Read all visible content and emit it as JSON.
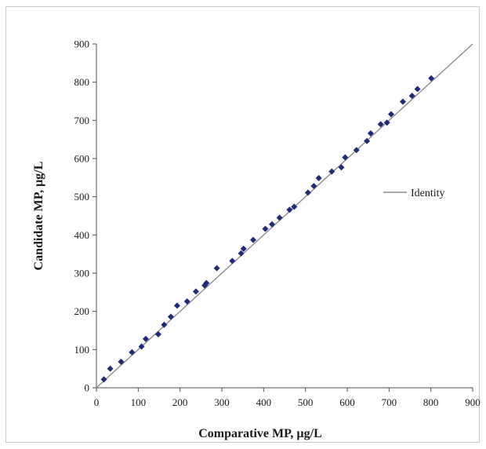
{
  "chart_data": {
    "type": "scatter",
    "xlabel": "Comparative MP, µg/L",
    "ylabel": "Candidate MP, µg/L",
    "xlim": [
      0,
      900
    ],
    "ylim": [
      0,
      900
    ],
    "xticks": [
      "0",
      "100",
      "200",
      "300",
      "400",
      "500",
      "600",
      "700",
      "800",
      "900"
    ],
    "yticks": [
      "0",
      "100",
      "200",
      "300",
      "400",
      "500",
      "600",
      "700",
      "800",
      "900"
    ],
    "grid": false,
    "legend_position": "right",
    "series": [
      {
        "kind": "scatter",
        "marker": "diamond",
        "color": "#1f2a7a",
        "points": [
          [
            18,
            22
          ],
          [
            33,
            50
          ],
          [
            59,
            68
          ],
          [
            85,
            93
          ],
          [
            108,
            108
          ],
          [
            118,
            128
          ],
          [
            148,
            140
          ],
          [
            162,
            165
          ],
          [
            178,
            186
          ],
          [
            193,
            215
          ],
          [
            217,
            226
          ],
          [
            238,
            252
          ],
          [
            259,
            268
          ],
          [
            263,
            274
          ],
          [
            288,
            313
          ],
          [
            325,
            332
          ],
          [
            346,
            352
          ],
          [
            352,
            364
          ],
          [
            375,
            387
          ],
          [
            404,
            416
          ],
          [
            420,
            428
          ],
          [
            438,
            445
          ],
          [
            462,
            466
          ],
          [
            473,
            474
          ],
          [
            506,
            511
          ],
          [
            520,
            528
          ],
          [
            532,
            549
          ],
          [
            563,
            566
          ],
          [
            586,
            577
          ],
          [
            595,
            603
          ],
          [
            622,
            622
          ],
          [
            647,
            646
          ],
          [
            656,
            666
          ],
          [
            680,
            690
          ],
          [
            695,
            694
          ],
          [
            705,
            716
          ],
          [
            733,
            749
          ],
          [
            755,
            764
          ],
          [
            768,
            782
          ],
          [
            801,
            810
          ]
        ]
      },
      {
        "kind": "line",
        "name": "Identity",
        "color": "#8c8c8c",
        "points": [
          [
            0,
            0
          ],
          [
            900,
            900
          ]
        ]
      }
    ]
  }
}
